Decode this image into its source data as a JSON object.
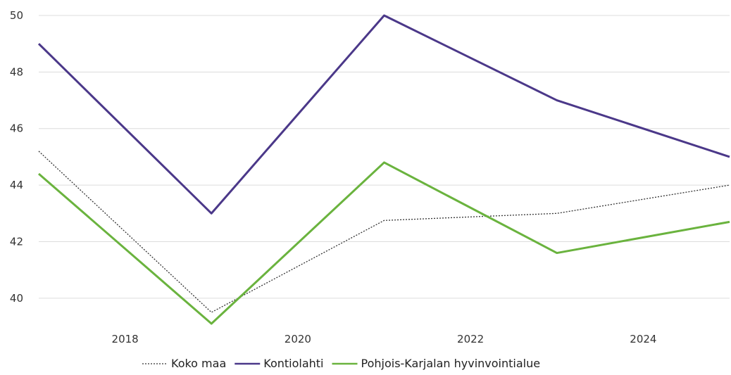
{
  "chart_data": {
    "type": "line",
    "title": "",
    "xlabel": "",
    "ylabel": "",
    "x": [
      2017,
      2019,
      2021,
      2023,
      2025
    ],
    "xlim": [
      2017,
      2025
    ],
    "ylim": [
      39.1,
      50
    ],
    "x_ticks": [
      "2018",
      "2020",
      "2022",
      "2024"
    ],
    "y_ticks": [
      "40",
      "42",
      "44",
      "46",
      "48",
      "50"
    ],
    "grid": "horizontal",
    "legend_position": "bottom",
    "series": [
      {
        "name": "Koko maa",
        "values": [
          45.2,
          39.5,
          42.75,
          43.0,
          44.0
        ],
        "color": "#333333",
        "style": "dotted"
      },
      {
        "name": "Kontiolahti",
        "values": [
          49.0,
          43.0,
          50.0,
          47.0,
          45.0
        ],
        "color": "#4b3889",
        "style": "solid"
      },
      {
        "name": "Pohjois-Karjalan hyvinvointialue",
        "values": [
          44.4,
          39.1,
          44.8,
          41.6,
          42.7
        ],
        "color": "#6ab33e",
        "style": "solid"
      }
    ]
  }
}
